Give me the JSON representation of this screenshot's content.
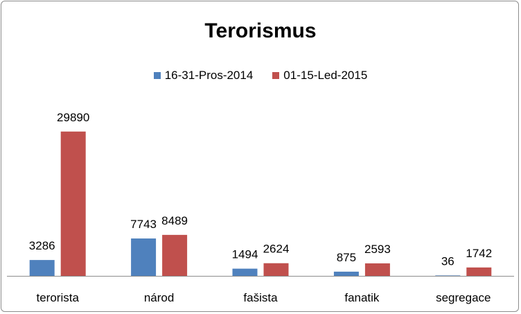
{
  "chart_data": {
    "type": "bar",
    "title": "Terorismus",
    "categories": [
      "terorista",
      "národ",
      "fašista",
      "fanatik",
      "segregace"
    ],
    "series": [
      {
        "name": "16-31-Pros-2014",
        "color": "#4F81BD",
        "values": [
          3286,
          7743,
          1494,
          875,
          36
        ]
      },
      {
        "name": "01-15-Led-2015",
        "color": "#C0504D",
        "values": [
          29890,
          8489,
          2624,
          2593,
          1742
        ]
      }
    ],
    "ylim": [
      0,
      30000
    ],
    "legend_position": "top",
    "grid": false,
    "data_labels": true
  }
}
